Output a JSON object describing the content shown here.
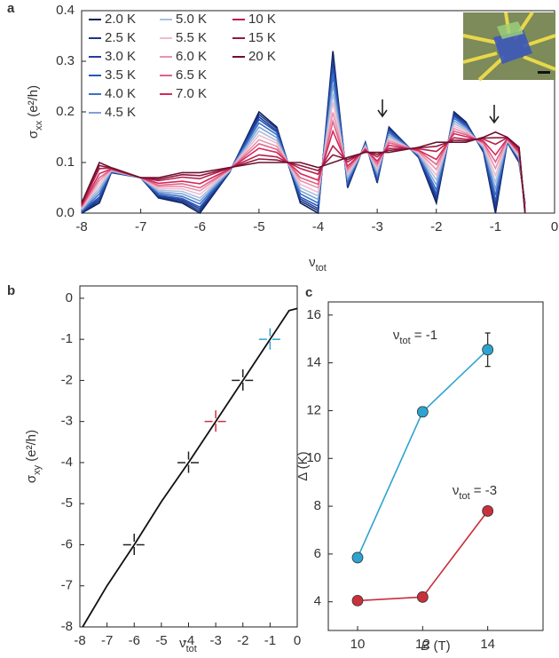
{
  "chart_data": [
    {
      "type": "line",
      "panel_label": "a",
      "xlabel": {
        "base": "ν",
        "sub": "tot"
      },
      "ylabel": {
        "base": "σ",
        "sub": "xx",
        "rest": " (e²/h)"
      },
      "xlim": [
        -8,
        0
      ],
      "ylim": [
        0,
        0.4
      ],
      "xticks": [
        -8,
        -7,
        -6,
        -5,
        -4,
        -3,
        -2,
        -1,
        0
      ],
      "yticks": [
        {
          "value": 0,
          "label": "0.0"
        },
        0.1,
        0.2,
        0.3,
        0.4
      ],
      "x": [
        -8,
        -7.7,
        -7.5,
        -7,
        -6.7,
        -6.3,
        -6,
        -5.5,
        -5,
        -4.7,
        -4.3,
        -4,
        -3.75,
        -3.5,
        -3.2,
        -3,
        -2.8,
        -2.3,
        -2,
        -1.7,
        -1.5,
        -1.2,
        -1,
        -0.8,
        -0.6,
        -0.5
      ],
      "series": [
        {
          "name": "2.0 K",
          "color": "#0b1f5c",
          "values": [
            0,
            0.02,
            0.08,
            0.07,
            0.03,
            0.02,
            0,
            0.08,
            0.2,
            0.17,
            0.02,
            0,
            0.32,
            0.05,
            0.14,
            0.06,
            0.17,
            0.11,
            0.02,
            0.2,
            0.18,
            0.12,
            0,
            0.14,
            0.1,
            0.02
          ]
        },
        {
          "name": "2.5 K",
          "color": "#1a3584",
          "values": [
            0.001,
            0.024,
            0.081,
            0.07,
            0.032,
            0.023,
            0.004,
            0.081,
            0.195,
            0.167,
            0.024,
            0.005,
            0.309,
            0.053,
            0.139,
            0.063,
            0.168,
            0.111,
            0.026,
            0.197,
            0.178,
            0.122,
            0.008,
            0.141,
            0.102,
            0.019
          ]
        },
        {
          "name": "3.0 K",
          "color": "#1f3f9a",
          "values": [
            0.002,
            0.028,
            0.081,
            0.07,
            0.034,
            0.026,
            0.008,
            0.081,
            0.19,
            0.163,
            0.028,
            0.009,
            0.298,
            0.056,
            0.138,
            0.066,
            0.165,
            0.112,
            0.032,
            0.194,
            0.176,
            0.123,
            0.016,
            0.141,
            0.103,
            0.018
          ]
        },
        {
          "name": "3.5 K",
          "color": "#2a55b8",
          "values": [
            0.003,
            0.032,
            0.082,
            0.07,
            0.036,
            0.029,
            0.012,
            0.082,
            0.185,
            0.16,
            0.032,
            0.014,
            0.287,
            0.059,
            0.137,
            0.069,
            0.163,
            0.113,
            0.038,
            0.191,
            0.174,
            0.125,
            0.024,
            0.142,
            0.105,
            0.017
          ]
        },
        {
          "name": "4.0 K",
          "color": "#3a72c4",
          "values": [
            0.004,
            0.038,
            0.082,
            0.07,
            0.039,
            0.033,
            0.018,
            0.082,
            0.178,
            0.155,
            0.038,
            0.02,
            0.272,
            0.063,
            0.136,
            0.073,
            0.159,
            0.114,
            0.046,
            0.187,
            0.171,
            0.127,
            0.035,
            0.142,
            0.107,
            0.016
          ]
        },
        {
          "name": "4.5 K",
          "color": "#7ea1d6",
          "values": [
            0.006,
            0.044,
            0.083,
            0.07,
            0.042,
            0.038,
            0.024,
            0.083,
            0.17,
            0.149,
            0.044,
            0.027,
            0.254,
            0.068,
            0.134,
            0.078,
            0.155,
            0.116,
            0.056,
            0.182,
            0.168,
            0.129,
            0.048,
            0.143,
            0.109,
            0.014
          ]
        },
        {
          "name": "5.0 K",
          "color": "#a9bfe3",
          "values": [
            0.008,
            0.05,
            0.084,
            0.07,
            0.045,
            0.043,
            0.03,
            0.084,
            0.162,
            0.143,
            0.05,
            0.034,
            0.236,
            0.073,
            0.132,
            0.083,
            0.151,
            0.118,
            0.066,
            0.177,
            0.165,
            0.131,
            0.061,
            0.144,
            0.111,
            0.012
          ]
        },
        {
          "name": "5.5 K",
          "color": "#f0bccb",
          "values": [
            0.009,
            0.057,
            0.085,
            0.07,
            0.048,
            0.048,
            0.037,
            0.085,
            0.154,
            0.138,
            0.057,
            0.041,
            0.219,
            0.078,
            0.131,
            0.088,
            0.147,
            0.119,
            0.075,
            0.172,
            0.162,
            0.134,
            0.074,
            0.145,
            0.114,
            0.011
          ]
        },
        {
          "name": "6.0 K",
          "color": "#ea93ad",
          "values": [
            0.011,
            0.064,
            0.086,
            0.07,
            0.052,
            0.053,
            0.044,
            0.086,
            0.145,
            0.132,
            0.064,
            0.05,
            0.199,
            0.083,
            0.129,
            0.093,
            0.143,
            0.121,
            0.086,
            0.167,
            0.158,
            0.137,
            0.088,
            0.146,
            0.117,
            0.009
          ]
        },
        {
          "name": "6.5 K",
          "color": "#e0628a",
          "values": [
            0.013,
            0.07,
            0.086,
            0.07,
            0.055,
            0.058,
            0.05,
            0.086,
            0.137,
            0.126,
            0.07,
            0.057,
            0.181,
            0.088,
            0.127,
            0.098,
            0.139,
            0.123,
            0.096,
            0.162,
            0.155,
            0.139,
            0.101,
            0.146,
            0.119,
            0.007
          ]
        },
        {
          "name": "7.0 K",
          "color": "#d42a5a",
          "values": [
            0.014,
            0.078,
            0.087,
            0.07,
            0.059,
            0.063,
            0.058,
            0.087,
            0.128,
            0.12,
            0.078,
            0.065,
            0.162,
            0.093,
            0.126,
            0.103,
            0.134,
            0.124,
            0.106,
            0.157,
            0.151,
            0.142,
            0.115,
            0.147,
            0.122,
            0.006
          ]
        },
        {
          "name": "10 K",
          "color": "#b61f4c",
          "values": [
            0.017,
            0.088,
            0.089,
            0.07,
            0.064,
            0.071,
            0.068,
            0.089,
            0.115,
            0.111,
            0.088,
            0.077,
            0.133,
            0.101,
            0.123,
            0.111,
            0.128,
            0.127,
            0.122,
            0.149,
            0.146,
            0.146,
            0.136,
            0.149,
            0.126,
            0.003
          ]
        },
        {
          "name": "15 K",
          "color": "#8f1a3e",
          "values": [
            0.019,
            0.094,
            0.089,
            0.07,
            0.067,
            0.076,
            0.074,
            0.089,
            0.107,
            0.105,
            0.094,
            0.084,
            0.115,
            0.106,
            0.121,
            0.116,
            0.124,
            0.129,
            0.132,
            0.144,
            0.143,
            0.148,
            0.149,
            0.149,
            0.128,
            0.001
          ]
        },
        {
          "name": "20 K",
          "color": "#6b1230",
          "values": [
            0.02,
            0.1,
            0.09,
            0.07,
            0.07,
            0.08,
            0.08,
            0.09,
            0.1,
            0.1,
            0.1,
            0.09,
            0.1,
            0.11,
            0.12,
            0.12,
            0.12,
            0.13,
            0.14,
            0.14,
            0.14,
            0.15,
            0.16,
            0.15,
            0.13,
            0
          ]
        }
      ]
    },
    {
      "type": "line",
      "panel_label": "b",
      "xlabel": {
        "base": "ν",
        "sub": "tot"
      },
      "ylabel": {
        "base": "σ",
        "sub": "xy",
        "rest": " (e²/h)"
      },
      "xlim": [
        -8,
        0
      ],
      "ylim": [
        -8,
        0.3
      ],
      "xticks": [
        -8,
        -7,
        -6,
        -5,
        -4,
        -3,
        -2,
        -1,
        0
      ],
      "yticks": [
        -8,
        -7,
        -6,
        -5,
        -4,
        -3,
        -2,
        -1,
        0
      ],
      "color": "#111111",
      "x": [
        -7.9,
        -7,
        -6,
        -5,
        -4,
        -3,
        -2,
        -1,
        -0.3,
        0
      ],
      "values": [
        -8,
        -7,
        -6,
        -4.95,
        -4,
        -3,
        -2,
        -1,
        -0.3,
        -0.25
      ],
      "markers": [
        {
          "x": -6,
          "y": -6,
          "color": "#222222"
        },
        {
          "x": -4,
          "y": -4,
          "color": "#222222"
        },
        {
          "x": -3,
          "y": -3,
          "color": "#d0303c"
        },
        {
          "x": -2,
          "y": -2,
          "color": "#222222"
        },
        {
          "x": -1,
          "y": -1,
          "color": "#2ea3d0"
        }
      ]
    },
    {
      "type": "errorline",
      "panel_label": "c",
      "xlabel": {
        "italic": "B",
        "rest": " (T)"
      },
      "ylabel": "Δ (K)",
      "xlim": [
        9.1,
        15.7
      ],
      "ylim": [
        2.8,
        16.55
      ],
      "xticks": [
        10,
        12,
        14
      ],
      "yticks": [
        4,
        6,
        8,
        10,
        12,
        14,
        16
      ],
      "x": [
        10,
        12,
        14
      ],
      "series": [
        {
          "name": {
            "base": "ν",
            "sub": "tot",
            "rest": " = -1"
          },
          "color": "#2ea3d0",
          "values": [
            5.85,
            11.95,
            14.55
          ],
          "errors": [
            0.1,
            0.2,
            0.7
          ]
        },
        {
          "name": {
            "base": "ν",
            "sub": "tot",
            "rest": " = -3"
          },
          "color": "#c8303c",
          "values": [
            4.05,
            4.2,
            7.8
          ],
          "errors": [
            0.08,
            0.08,
            0.12
          ]
        }
      ]
    }
  ]
}
